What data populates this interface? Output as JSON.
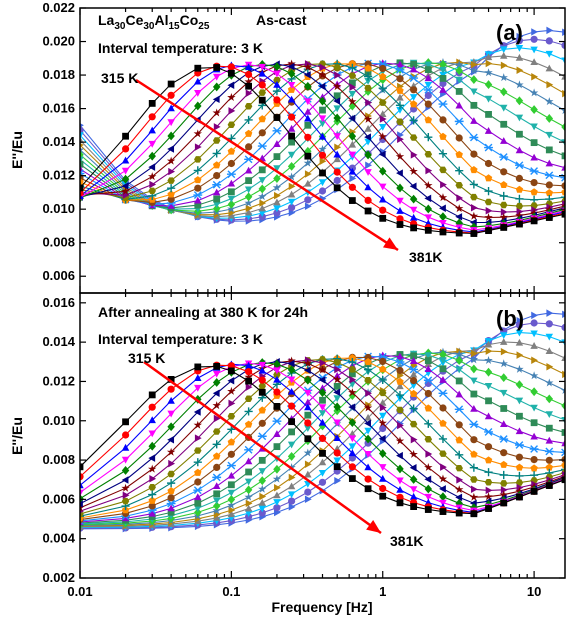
{
  "chart_data": [
    {
      "type": "line",
      "panel_label": "(a)",
      "ylabel": "E''/Eu",
      "xlabel": "Frequency [Hz]",
      "xscale": "log",
      "xlim": [
        0.01,
        16
      ],
      "ylim": [
        0.005,
        0.022
      ],
      "yticks": [
        "0.006",
        "0.008",
        "0.010",
        "0.012",
        "0.014",
        "0.016",
        "0.018",
        "0.020",
        "0.022"
      ],
      "xticks": [
        "0.01",
        "0.1",
        "1",
        "10"
      ],
      "composition": {
        "parts": [
          [
            "La",
            "30"
          ],
          [
            "Ce",
            "30"
          ],
          [
            "Al",
            "15"
          ],
          [
            "Co",
            "25"
          ]
        ]
      },
      "state_label": "As-cast",
      "interval_label": "Interval temperature: 3 K",
      "arrow_start_label": "315 K",
      "arrow_end_label": "381K",
      "series_count": 23,
      "temperature_start_K": 315,
      "temperature_step_K": 3,
      "model": {
        "peak_height_first": 0.0185,
        "peak_height_last": 0.0188,
        "peak_logf_first": -1.15,
        "peak_logf_last": 0.85,
        "peak_width_first": 0.75,
        "peak_width_last": 1.0,
        "baseline_first": 0.0085,
        "baseline_last": 0.0082,
        "lowfreq_tail_first": 0.0,
        "lowfreq_tail_last": 0.0068,
        "highfreq_rise_first": 0.0012,
        "highfreq_rise_last": 0.003
      }
    },
    {
      "type": "line",
      "panel_label": "(b)",
      "ylabel": "E''/Eu",
      "xlabel": "Frequency [Hz]",
      "xscale": "log",
      "xlim": [
        0.01,
        16
      ],
      "ylim": [
        0.002,
        0.0165
      ],
      "yticks": [
        "0.002",
        "0.004",
        "0.006",
        "0.008",
        "0.010",
        "0.012",
        "0.014",
        "0.016"
      ],
      "xticks": [
        "0.01",
        "0.1",
        "1",
        "10"
      ],
      "state_label": "After annealing at 380 K for 24h",
      "interval_label": "Interval temperature: 3 K",
      "arrow_start_label": "315 K",
      "arrow_end_label": "381K",
      "series_count": 23,
      "temperature_start_K": 315,
      "temperature_step_K": 3,
      "model": {
        "peak_height_first": 0.0128,
        "peak_height_last": 0.0137,
        "peak_logf_first": -1.15,
        "peak_logf_last": 0.85,
        "peak_width_first": 0.8,
        "peak_width_last": 1.0,
        "baseline_first": 0.0052,
        "baseline_last": 0.0045,
        "lowfreq_tail_first": 0.0,
        "lowfreq_tail_last": 0.0,
        "highfreq_rise_first": 0.0018,
        "highfreq_rise_last": 0.0028
      }
    }
  ],
  "series_colors": [
    "#000000",
    "#ff0000",
    "#0000ff",
    "#ff00ff",
    "#008000",
    "#000080",
    "#800000",
    "#800080",
    "#808000",
    "#008080",
    "#ff8c00",
    "#8b4513",
    "#1e90ff",
    "#9400d3",
    "#2e8b57",
    "#20b2aa",
    "#32cd32",
    "#4682b4",
    "#b8860b",
    "#808080",
    "#00bfff",
    "#6a5acd",
    "#4169e1"
  ],
  "series_markers": [
    "square",
    "circle",
    "triangle-up",
    "triangle-down",
    "diamond",
    "triangle-left",
    "star",
    "triangle-right",
    "hexagon",
    "plus",
    "pentagon",
    "circle",
    "x",
    "triangle-up",
    "square",
    "triangle-down",
    "diamond",
    "star",
    "triangle-right",
    "triangle-up",
    "triangle-down",
    "circle",
    "triangle-right"
  ],
  "arrow_color": "#ff0000"
}
